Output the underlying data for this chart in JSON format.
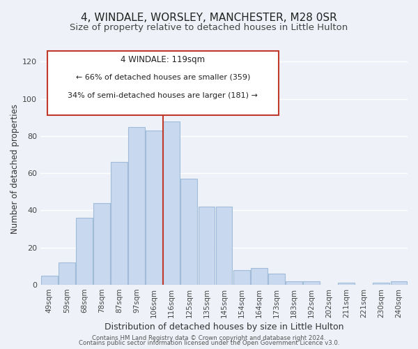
{
  "title": "4, WINDALE, WORSLEY, MANCHESTER, M28 0SR",
  "subtitle": "Size of property relative to detached houses in Little Hulton",
  "xlabel": "Distribution of detached houses by size in Little Hulton",
  "ylabel": "Number of detached properties",
  "footer_line1": "Contains HM Land Registry data © Crown copyright and database right 2024.",
  "footer_line2": "Contains public sector information licensed under the Open Government Licence v3.0.",
  "bar_labels": [
    "49sqm",
    "59sqm",
    "68sqm",
    "78sqm",
    "87sqm",
    "97sqm",
    "106sqm",
    "116sqm",
    "125sqm",
    "135sqm",
    "145sqm",
    "154sqm",
    "164sqm",
    "173sqm",
    "183sqm",
    "192sqm",
    "202sqm",
    "211sqm",
    "221sqm",
    "230sqm",
    "240sqm"
  ],
  "bar_values": [
    5,
    12,
    36,
    44,
    66,
    85,
    83,
    88,
    57,
    42,
    42,
    8,
    9,
    6,
    2,
    2,
    0,
    1,
    0,
    1,
    2
  ],
  "bar_color": "#c8d8ee",
  "bar_edge_color": "#a0bcd8",
  "highlight_bar_index": 7,
  "vline_color": "#c0392b",
  "annotation_title": "4 WINDALE: 119sqm",
  "annotation_line1": "← 66% of detached houses are smaller (359)",
  "annotation_line2": "34% of semi-detached houses are larger (181) →",
  "annotation_box_color": "#ffffff",
  "annotation_box_edge_color": "#c0392b",
  "ylim": [
    0,
    125
  ],
  "yticks": [
    0,
    20,
    40,
    60,
    80,
    100,
    120
  ],
  "background_color": "#eef2f8",
  "grid_color": "#ffffff",
  "title_fontsize": 11,
  "subtitle_fontsize": 9.5,
  "xlabel_fontsize": 9,
  "ylabel_fontsize": 8.5
}
